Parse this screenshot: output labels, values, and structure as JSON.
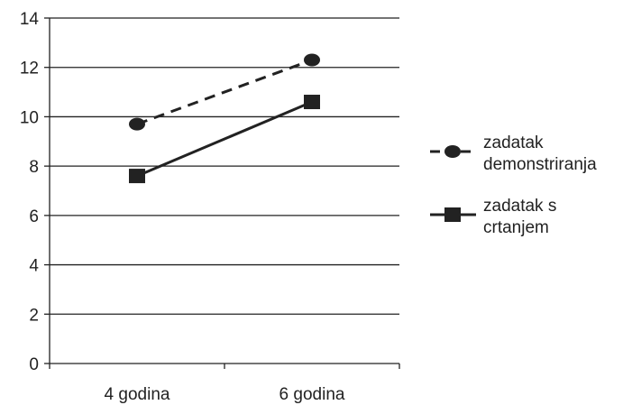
{
  "chart_data": {
    "type": "line",
    "title": "",
    "xlabel": "",
    "ylabel": "",
    "categories": [
      "4 godina",
      "6 godina"
    ],
    "ylim": [
      0,
      14
    ],
    "yticks": [
      0,
      2,
      4,
      6,
      8,
      10,
      12,
      14
    ],
    "grid": true,
    "legend_position": "right",
    "series": [
      {
        "name_lines": [
          "zadatak",
          "demonstriranja"
        ],
        "values": [
          9.7,
          12.3
        ],
        "marker": "circle",
        "line_style": "dashed",
        "color": "#222222"
      },
      {
        "name_lines": [
          "zadatak s",
          "crtanjem"
        ],
        "values": [
          7.6,
          10.6
        ],
        "marker": "square",
        "line_style": "solid",
        "color": "#222222"
      }
    ]
  }
}
